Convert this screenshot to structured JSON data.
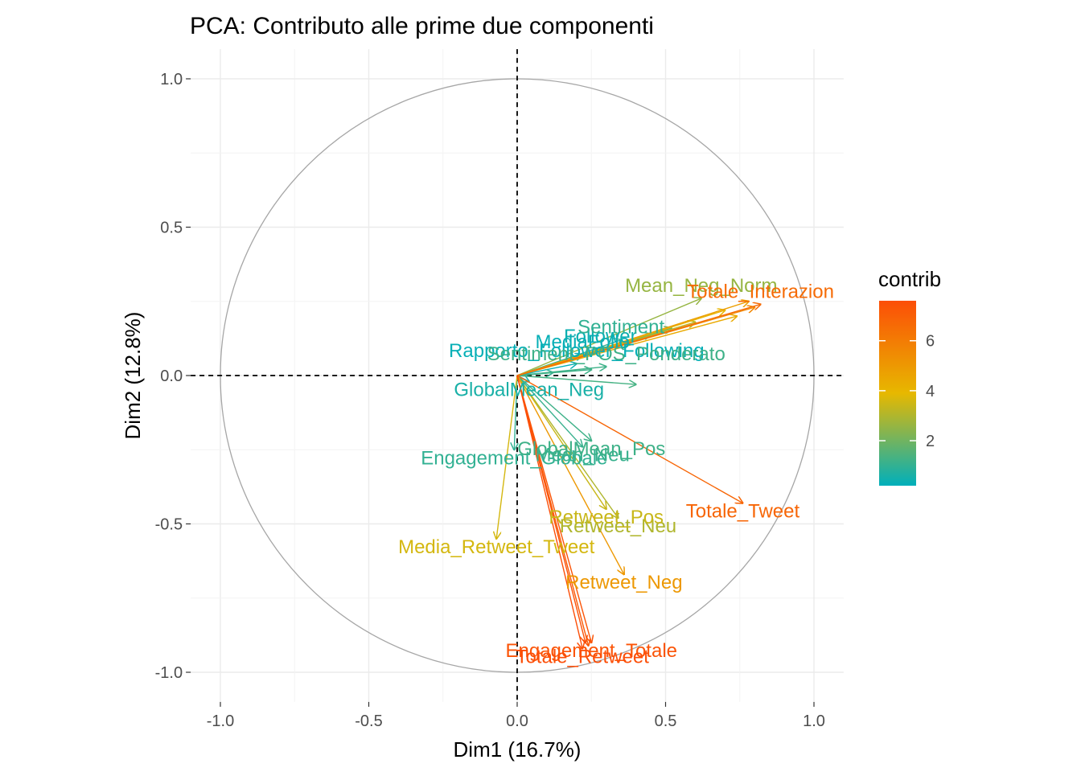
{
  "chart_data": {
    "type": "scatter",
    "subtype": "pca-variable-correlation-circle",
    "title": "PCA: Contributo alle prime due componenti",
    "xlabel": "Dim1 (16.7%)",
    "ylabel": "Dim2 (12.8%)",
    "xlim": [
      -1.1,
      1.1
    ],
    "ylim": [
      -1.1,
      1.1
    ],
    "xticks": [
      -1.0,
      -0.5,
      0.0,
      0.5,
      1.0
    ],
    "yticks": [
      -1.0,
      -0.5,
      0.0,
      0.5,
      1.0
    ],
    "xtick_labels": [
      "-1.0",
      "-0.5",
      "0.0",
      "0.5",
      "1.0"
    ],
    "ytick_labels": [
      "-1.0",
      "-0.5",
      "0.0",
      "0.5",
      "1.0"
    ],
    "grid": true,
    "unit_circle": true,
    "reference_lines": [
      "x=0",
      "y=0"
    ],
    "legend": {
      "title": "contrib",
      "position": "right",
      "type": "gradient",
      "range": [
        0.2,
        7.6
      ],
      "ticks": [
        2,
        4,
        6
      ],
      "tick_labels": [
        "2",
        "4",
        "6"
      ],
      "colors": [
        "#00AFBB",
        "#E7B800",
        "#FC4E07"
      ]
    },
    "labels_visible": [
      "Mean_Neg_Norm",
      "Totale_Interazion",
      "Sentiment",
      "Follower",
      "MediaFollo",
      "Rapporto_Follower_Following",
      "Sentiment_POS_Ponderato",
      "GlobalMean_Neg",
      "GlobalMean_Pos",
      "Engagement_Globale",
      "Mean_Neu",
      "Totale_Tweet",
      "Retweet_Pos",
      "Retweet_Neu",
      "Media_Retweet_Tweet",
      "Retweet_Neg",
      "Engagement_Totale",
      "Totale_Retweet"
    ],
    "variables": [
      {
        "name": "Totale_Interazion",
        "x": 0.82,
        "y": 0.24,
        "contrib": 6.6
      },
      {
        "name": "Mean_Neg_Norm",
        "x": 0.62,
        "y": 0.26,
        "contrib": 2.6
      },
      {
        "name": "",
        "x": 0.78,
        "y": 0.25,
        "contrib": 4.8
      },
      {
        "name": "",
        "x": 0.8,
        "y": 0.23,
        "contrib": 5.6
      },
      {
        "name": "",
        "x": 0.74,
        "y": 0.2,
        "contrib": 4.4
      },
      {
        "name": "",
        "x": 0.7,
        "y": 0.22,
        "contrib": 4.0
      },
      {
        "name": "",
        "x": 0.6,
        "y": 0.18,
        "contrib": 3.2
      },
      {
        "name": "",
        "x": 0.52,
        "y": 0.16,
        "contrib": 2.0
      },
      {
        "name": "",
        "x": 0.45,
        "y": 0.14,
        "contrib": 1.4
      },
      {
        "name": "Sentiment",
        "x": 0.35,
        "y": 0.12,
        "contrib": 1.0
      },
      {
        "name": "Follower",
        "x": 0.28,
        "y": 0.09,
        "contrib": 0.4
      },
      {
        "name": "MediaFollo",
        "x": 0.22,
        "y": 0.07,
        "contrib": 0.3
      },
      {
        "name": "Rapporto_Follower_Following",
        "x": 0.2,
        "y": 0.04,
        "contrib": 0.3
      },
      {
        "name": "Sentiment_POS_Ponderato",
        "x": 0.3,
        "y": 0.03,
        "contrib": 1.2
      },
      {
        "name": "",
        "x": 0.25,
        "y": 0.02,
        "contrib": 1.2
      },
      {
        "name": "",
        "x": 0.12,
        "y": 0.01,
        "contrib": 1.0
      },
      {
        "name": "GlobalMean_Neg",
        "x": 0.04,
        "y": -0.02,
        "contrib": 0.6
      },
      {
        "name": "",
        "x": 0.4,
        "y": -0.03,
        "contrib": 1.3
      },
      {
        "name": "GlobalMean_Pos",
        "x": 0.25,
        "y": -0.22,
        "contrib": 1.2
      },
      {
        "name": "Mean_Neu",
        "x": 0.22,
        "y": -0.24,
        "contrib": 1.1
      },
      {
        "name": "Engagement_Globale",
        "x": -0.01,
        "y": -0.25,
        "contrib": 1.0
      },
      {
        "name": "Totale_Tweet",
        "x": 0.76,
        "y": -0.43,
        "contrib": 6.8
      },
      {
        "name": "Retweet_Pos",
        "x": 0.3,
        "y": -0.45,
        "contrib": 3.4
      },
      {
        "name": "Retweet_Neu",
        "x": 0.34,
        "y": -0.48,
        "contrib": 3.0
      },
      {
        "name": "Media_Retweet_Tweet",
        "x": -0.07,
        "y": -0.55,
        "contrib": 3.6
      },
      {
        "name": "Retweet_Neg",
        "x": 0.36,
        "y": -0.67,
        "contrib": 5.0
      },
      {
        "name": "Engagement_Totale",
        "x": 0.25,
        "y": -0.9,
        "contrib": 7.4
      },
      {
        "name": "Totale_Retweet",
        "x": 0.22,
        "y": -0.92,
        "contrib": 7.6
      },
      {
        "name": "",
        "x": 0.23,
        "y": -0.9,
        "contrib": 7.5
      },
      {
        "name": "",
        "x": 0.24,
        "y": -0.91,
        "contrib": 7.2
      }
    ]
  }
}
